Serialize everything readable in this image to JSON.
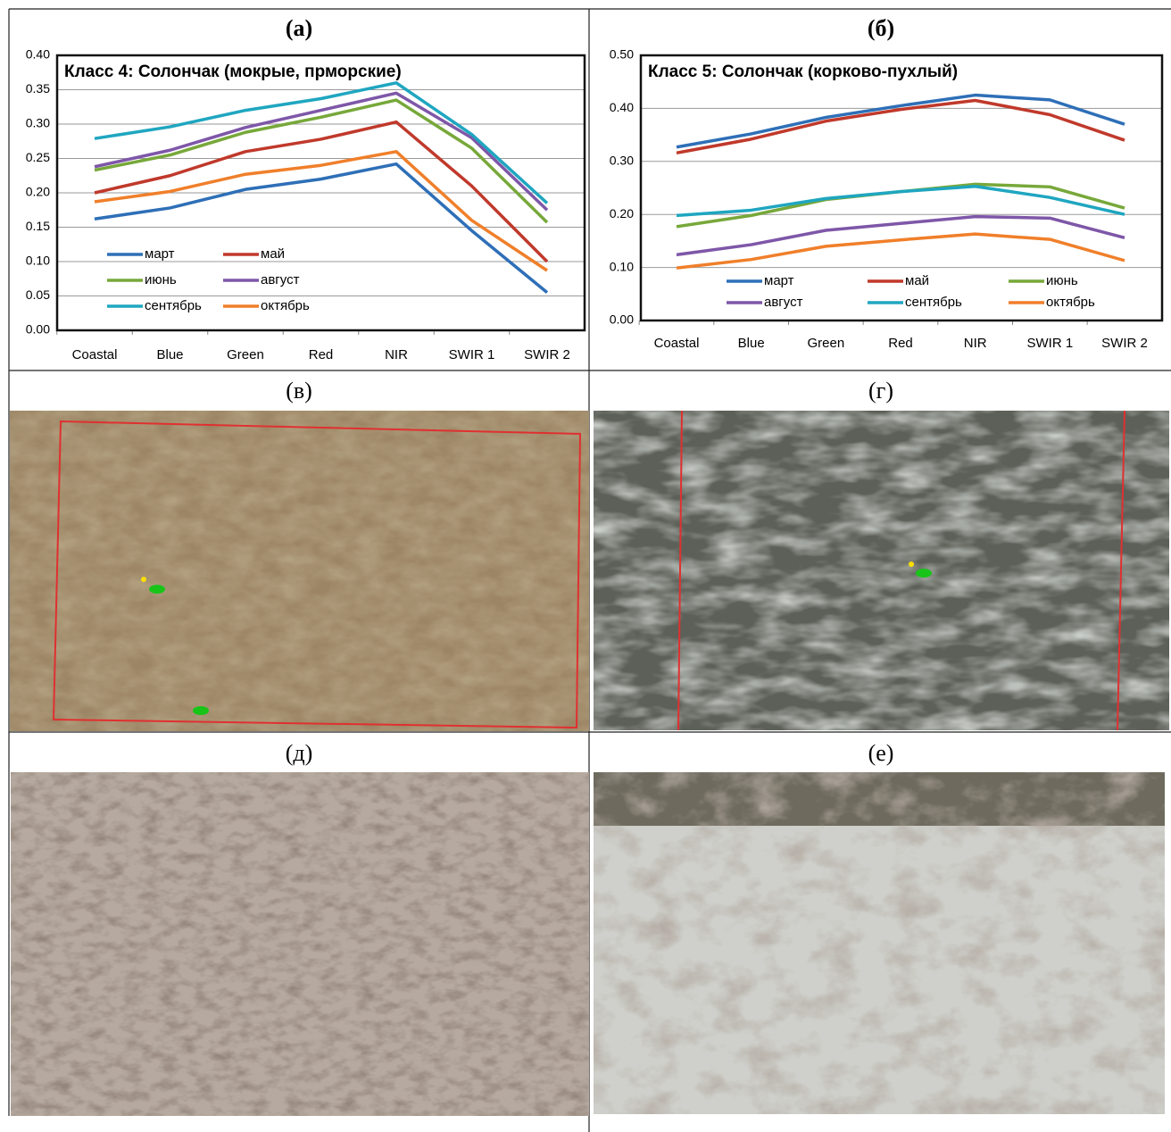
{
  "chart_data": [
    {
      "type": "line",
      "panel": "(а)",
      "title": "Класс 4: Солончак (мокрые, прморские)",
      "categories": [
        "Coastal",
        "Blue",
        "Green",
        "Red",
        "NIR",
        "SWIR 1",
        "SWIR 2"
      ],
      "ylim": [
        0,
        0.4
      ],
      "yticks": [
        {
          "value": 0,
          "label": "0.00"
        },
        0.05,
        {
          "value": 0.1,
          "label": "0.10"
        },
        0.15,
        {
          "value": 0.2,
          "label": "0.20"
        },
        0.25,
        {
          "value": 0.3,
          "label": "0.30"
        },
        0.35,
        {
          "value": 0.4,
          "label": "0.40"
        }
      ],
      "grid": true,
      "legend": "lower left",
      "series": [
        {
          "name": "март",
          "color": "#2e6fb7",
          "values": [
            0.162,
            0.178,
            0.205,
            0.22,
            0.242,
            0.145,
            0.055
          ]
        },
        {
          "name": "май",
          "color": "#c0392b",
          "values": [
            0.2,
            0.225,
            0.26,
            0.278,
            0.303,
            0.21,
            0.1
          ]
        },
        {
          "name": "июнь",
          "color": "#77a83a",
          "values": [
            0.233,
            0.255,
            0.288,
            0.31,
            0.335,
            0.265,
            0.157
          ]
        },
        {
          "name": "август",
          "color": "#7e57a8",
          "values": [
            0.238,
            0.262,
            0.295,
            0.32,
            0.345,
            0.28,
            0.175
          ]
        },
        {
          "name": "сентябрь",
          "color": "#1fa6c0",
          "values": [
            0.279,
            0.296,
            0.32,
            0.337,
            0.36,
            0.285,
            0.185
          ]
        },
        {
          "name": "октябрь",
          "color": "#f07f2a",
          "values": [
            0.187,
            0.202,
            0.227,
            0.24,
            0.26,
            0.16,
            0.087
          ]
        }
      ]
    },
    {
      "type": "line",
      "panel": "(б)",
      "title": "Класс 5: Солончак (корково-пухлый)",
      "categories": [
        "Coastal",
        "Blue",
        "Green",
        "Red",
        "NIR",
        "SWIR 1",
        "SWIR 2"
      ],
      "ylim": [
        0,
        0.5
      ],
      "yticks": [
        {
          "value": 0,
          "label": "0.00"
        },
        {
          "value": 0.1,
          "label": "0.10"
        },
        {
          "value": 0.2,
          "label": "0.20"
        },
        {
          "value": 0.3,
          "label": "0.30"
        },
        {
          "value": 0.4,
          "label": "0.40"
        },
        {
          "value": 0.5,
          "label": "0.50"
        }
      ],
      "grid": true,
      "legend": "lower center",
      "series": [
        {
          "name": "март",
          "color": "#2e6fb7",
          "values": [
            0.327,
            0.352,
            0.383,
            0.405,
            0.425,
            0.416,
            0.37
          ]
        },
        {
          "name": "май",
          "color": "#c0392b",
          "values": [
            0.316,
            0.342,
            0.376,
            0.398,
            0.415,
            0.388,
            0.34
          ]
        },
        {
          "name": "июнь",
          "color": "#77a83a",
          "values": [
            0.177,
            0.198,
            0.228,
            0.243,
            0.257,
            0.252,
            0.212
          ]
        },
        {
          "name": "август",
          "color": "#7e57a8",
          "values": [
            0.124,
            0.143,
            0.17,
            0.183,
            0.196,
            0.193,
            0.156
          ]
        },
        {
          "name": "сентябрь",
          "color": "#1fa6c0",
          "values": [
            0.198,
            0.208,
            0.23,
            0.243,
            0.253,
            0.232,
            0.2
          ]
        },
        {
          "name": "октябрь",
          "color": "#f07f2a",
          "values": [
            0.099,
            0.115,
            0.14,
            0.152,
            0.163,
            0.153,
            0.113
          ]
        }
      ]
    }
  ],
  "photo_panels": [
    "(в)",
    "(г)",
    "(д)",
    "(е)"
  ]
}
